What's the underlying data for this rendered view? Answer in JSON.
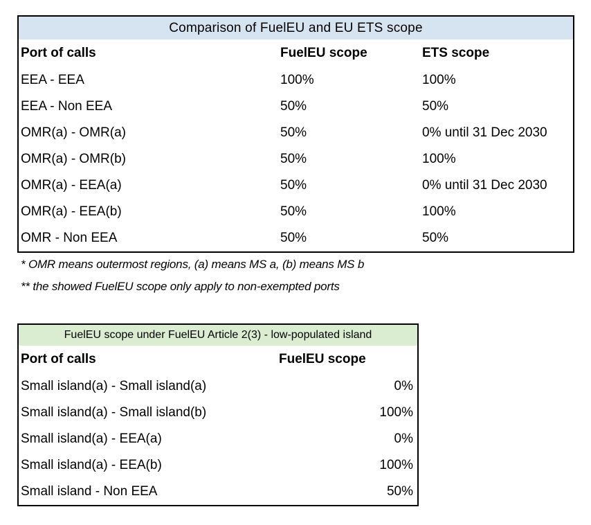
{
  "table1": {
    "title": "Comparison of FuelEU and EU ETS scope",
    "title_bg": "#d6e4f1",
    "columns": [
      "Port of calls",
      "FuelEU scope",
      "ETS scope"
    ],
    "rows": [
      {
        "port": "EEA - EEA",
        "fueleu": "100%",
        "ets": "100%"
      },
      {
        "port": "EEA - Non EEA",
        "fueleu": "50%",
        "ets": "50%"
      },
      {
        "port": "OMR(a) - OMR(a)",
        "fueleu": "50%",
        "ets": "0% until 31 Dec 2030"
      },
      {
        "port": "OMR(a) - OMR(b)",
        "fueleu": "50%",
        "ets": "100%"
      },
      {
        "port": "OMR(a) - EEA(a)",
        "fueleu": "50%",
        "ets": "0% until 31 Dec 2030"
      },
      {
        "port": "OMR(a) - EEA(b)",
        "fueleu": "50%",
        "ets": "100%"
      },
      {
        "port": "OMR - Non EEA",
        "fueleu": "50%",
        "ets": "50%"
      }
    ]
  },
  "footnotes": [
    "* OMR means outermost regions, (a) means MS a, (b) means MS b",
    "** the showed FuelEU scope only apply to non-exempted ports"
  ],
  "table2": {
    "title": "FuelEU scope under FuelEU Article 2(3) - low-populated island",
    "title_bg": "#daedd0",
    "columns": [
      "Port of calls",
      "FuelEU scope"
    ],
    "rows": [
      {
        "port": "Small island(a) - Small island(a)",
        "fueleu": "0%"
      },
      {
        "port": "Small island(a) - Small island(b)",
        "fueleu": "100%"
      },
      {
        "port": "Small island(a) - EEA(a)",
        "fueleu": "0%"
      },
      {
        "port": "Small island(a) - EEA(b)",
        "fueleu": "100%"
      },
      {
        "port": "Small island - Non EEA",
        "fueleu": "50%"
      }
    ]
  }
}
